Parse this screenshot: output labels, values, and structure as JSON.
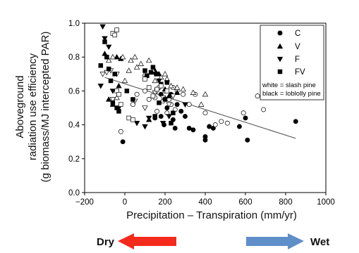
{
  "chart_data": {
    "type": "scatter",
    "xlabel": "Precipitation – Transpiration (mm/yr)",
    "ylabel_lines": [
      "Aboveground",
      "radiation use efficiency",
      "(g biomass/MJ intercepted PAR)"
    ],
    "xlim": [
      -200,
      1000
    ],
    "ylim": [
      0.0,
      1.0
    ],
    "xticks": [
      -200,
      0,
      200,
      400,
      600,
      800,
      1000
    ],
    "yticks": [
      0.0,
      0.2,
      0.4,
      0.6,
      0.8,
      1.0
    ],
    "xtick_labels": [
      "−200",
      "0",
      "200",
      "400",
      "600",
      "800",
      "1000"
    ],
    "ytick_labels": [
      "0.0",
      "0.2",
      "0.4",
      "0.6",
      "0.8",
      "1.0"
    ],
    "legend": {
      "placement": "top-right",
      "entries": [
        {
          "label": "C",
          "marker": "circle"
        },
        {
          "label": "V",
          "marker": "triangle-up"
        },
        {
          "label": "F",
          "marker": "triangle-down"
        },
        {
          "label": "FV",
          "marker": "square"
        }
      ],
      "note_lines": [
        "white = slash pine",
        "black = loblolly pine"
      ]
    },
    "fill_meaning": {
      "white": "slash pine",
      "black": "loblolly pine"
    },
    "trendline": {
      "x": [
        -100,
        850
      ],
      "y": [
        0.68,
        0.32
      ]
    },
    "series": [
      {
        "marker": "circle",
        "fill": "black",
        "points": [
          [
            -10,
            0.3
          ],
          [
            150,
            0.44
          ],
          [
            180,
            0.45
          ],
          [
            195,
            0.4
          ],
          [
            210,
            0.5
          ],
          [
            240,
            0.43
          ],
          [
            250,
            0.38
          ],
          [
            280,
            0.48
          ],
          [
            300,
            0.45
          ],
          [
            320,
            0.38
          ],
          [
            340,
            0.37
          ],
          [
            400,
            0.31
          ],
          [
            400,
            0.33
          ],
          [
            420,
            0.39
          ],
          [
            440,
            0.38
          ],
          [
            570,
            0.39
          ],
          [
            600,
            0.44
          ],
          [
            610,
            0.31
          ],
          [
            850,
            0.42
          ],
          [
            180,
            0.58
          ],
          [
            230,
            0.58
          ],
          [
            260,
            0.52
          ]
        ]
      },
      {
        "marker": "circle",
        "fill": "white",
        "points": [
          [
            -20,
            0.36
          ],
          [
            40,
            0.52
          ],
          [
            60,
            0.58
          ],
          [
            100,
            0.6
          ],
          [
            120,
            0.55
          ],
          [
            150,
            0.56
          ],
          [
            170,
            0.62
          ],
          [
            190,
            0.54
          ],
          [
            200,
            0.6
          ],
          [
            220,
            0.55
          ],
          [
            230,
            0.52
          ],
          [
            240,
            0.62
          ],
          [
            260,
            0.6
          ],
          [
            290,
            0.58
          ],
          [
            320,
            0.52
          ],
          [
            350,
            0.58
          ],
          [
            450,
            0.4
          ],
          [
            480,
            0.42
          ],
          [
            510,
            0.41
          ],
          [
            590,
            0.47
          ],
          [
            660,
            0.57
          ],
          [
            690,
            0.49
          ],
          [
            400,
            0.47
          ],
          [
            250,
            0.49
          ],
          [
            160,
            0.48
          ],
          [
            210,
            0.47
          ]
        ]
      },
      {
        "marker": "triangle-up",
        "fill": "black",
        "points": [
          [
            -100,
            0.82
          ],
          [
            -40,
            0.8
          ],
          [
            -20,
            0.79
          ],
          [
            -80,
            0.55
          ],
          [
            -60,
            0.52
          ],
          [
            150,
            0.72
          ],
          [
            170,
            0.7
          ],
          [
            200,
            0.61
          ],
          [
            220,
            0.57
          ],
          [
            260,
            0.59
          ],
          [
            120,
            0.43
          ],
          [
            -30,
            0.63
          ]
        ]
      },
      {
        "marker": "triangle-up",
        "fill": "white",
        "points": [
          [
            -80,
            0.78
          ],
          [
            -60,
            0.8
          ],
          [
            -10,
            0.8
          ],
          [
            20,
            0.72
          ],
          [
            30,
            0.78
          ],
          [
            50,
            0.8
          ],
          [
            60,
            0.74
          ],
          [
            80,
            0.76
          ],
          [
            100,
            0.7
          ],
          [
            120,
            0.78
          ],
          [
            140,
            0.72
          ],
          [
            150,
            0.66
          ],
          [
            180,
            0.68
          ],
          [
            200,
            0.7
          ],
          [
            210,
            0.67
          ],
          [
            230,
            0.63
          ],
          [
            260,
            0.62
          ],
          [
            290,
            0.61
          ],
          [
            340,
            0.59
          ],
          [
            380,
            0.52
          ],
          [
            400,
            0.58
          ],
          [
            -40,
            0.56
          ],
          [
            0,
            0.66
          ]
        ]
      },
      {
        "marker": "triangle-down",
        "fill": "black",
        "points": [
          [
            -110,
            0.98
          ],
          [
            -100,
            0.91
          ],
          [
            -80,
            0.86
          ],
          [
            -120,
            0.63
          ],
          [
            -60,
            0.6
          ],
          [
            -30,
            0.5
          ],
          [
            60,
            0.41
          ],
          [
            100,
            0.39
          ],
          [
            120,
            0.44
          ],
          [
            150,
            0.7
          ],
          [
            170,
            0.66
          ],
          [
            190,
            0.41
          ],
          [
            220,
            0.45
          ],
          [
            300,
            0.52
          ]
        ]
      },
      {
        "marker": "triangle-down",
        "fill": "white",
        "points": [
          [
            -110,
            0.7
          ],
          [
            -90,
            0.71
          ],
          [
            -70,
            0.72
          ],
          [
            -40,
            0.7
          ],
          [
            50,
            0.54
          ],
          [
            150,
            0.59
          ],
          [
            160,
            0.6
          ],
          [
            190,
            0.56
          ],
          [
            220,
            0.52
          ],
          [
            240,
            0.57
          ],
          [
            -60,
            0.55
          ],
          [
            100,
            0.5
          ]
        ]
      },
      {
        "marker": "square",
        "fill": "black",
        "points": [
          [
            -120,
            0.75
          ],
          [
            -100,
            0.89
          ],
          [
            -90,
            0.8
          ],
          [
            -80,
            0.73
          ],
          [
            -70,
            0.66
          ],
          [
            -50,
            0.7
          ],
          [
            -60,
            0.53
          ],
          [
            -40,
            0.5
          ],
          [
            -30,
            0.48
          ],
          [
            10,
            0.6
          ],
          [
            40,
            0.55
          ],
          [
            100,
            0.72
          ],
          [
            110,
            0.69
          ],
          [
            130,
            0.71
          ],
          [
            140,
            0.74
          ],
          [
            160,
            0.7
          ],
          [
            180,
            0.64
          ],
          [
            200,
            0.55
          ],
          [
            210,
            0.65
          ],
          [
            170,
            0.53
          ],
          [
            240,
            0.47
          ],
          [
            150,
            0.45
          ],
          [
            230,
            0.41
          ]
        ]
      },
      {
        "marker": "square",
        "fill": "white",
        "points": [
          [
            -60,
            0.94
          ],
          [
            -40,
            0.96
          ],
          [
            -50,
            0.93
          ],
          [
            -40,
            0.6
          ],
          [
            -30,
            0.58
          ],
          [
            -20,
            0.52
          ],
          [
            20,
            0.44
          ],
          [
            40,
            0.43
          ],
          [
            100,
            0.67
          ],
          [
            120,
            0.62
          ],
          [
            160,
            0.61
          ],
          [
            180,
            0.63
          ],
          [
            210,
            0.6
          ],
          [
            140,
            0.57
          ]
        ]
      }
    ]
  },
  "bottom_labels": {
    "dry": "Dry",
    "wet": "Wet"
  },
  "colors": {
    "dry_arrow": "#f42a1c",
    "wet_arrow": "#5f8fc9",
    "trendline": "#555555"
  }
}
